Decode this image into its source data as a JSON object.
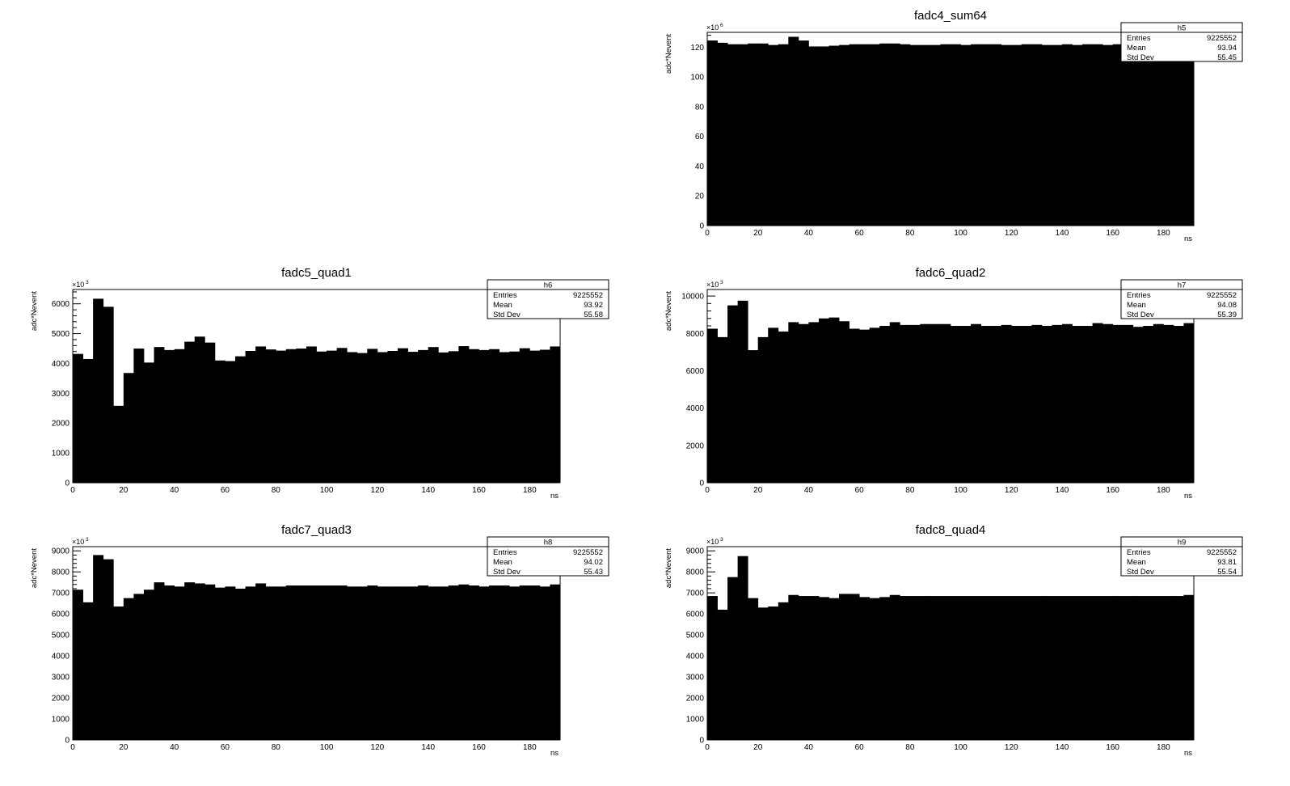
{
  "chart_data": [
    {
      "type": "bar",
      "title": "fadc4_sum64",
      "xlabel": "ns",
      "ylabel": "adc*Nevent",
      "y_multiplier_label": "×10",
      "y_multiplier_exponent": "6",
      "xlim": [
        0,
        192
      ],
      "ylim": [
        0,
        130
      ],
      "xticks": [
        0,
        20,
        40,
        60,
        80,
        100,
        120,
        140,
        160,
        180
      ],
      "yticks": [
        0,
        20,
        40,
        60,
        80,
        100,
        120
      ],
      "bin_width": 4,
      "values": [
        124.5,
        123,
        122,
        122,
        122.5,
        122.5,
        121.5,
        122,
        127,
        124.5,
        120.5,
        120.5,
        121,
        121.5,
        122,
        122,
        122,
        122.5,
        122.5,
        122,
        121.5,
        121.5,
        121.5,
        122,
        122,
        121.5,
        122,
        122,
        122,
        121.5,
        121.5,
        122,
        122,
        121.5,
        121.5,
        122,
        121.5,
        122,
        122,
        121.5,
        122,
        122,
        121.5,
        122,
        121.5,
        122,
        122,
        121.5
      ],
      "stats": {
        "name": "h5",
        "rows": [
          [
            "Entries",
            "9225552"
          ],
          [
            "Mean",
            "93.94"
          ],
          [
            "Std Dev",
            "55.45"
          ]
        ]
      }
    },
    {
      "type": "bar",
      "title": "fadc5_quad1",
      "xlabel": "ns",
      "ylabel": "adc*Nevent",
      "y_multiplier_label": "×10",
      "y_multiplier_exponent": "3",
      "xlim": [
        0,
        192
      ],
      "ylim": [
        0,
        6480
      ],
      "xticks": [
        0,
        20,
        40,
        60,
        80,
        100,
        120,
        140,
        160,
        180
      ],
      "yticks": [
        0,
        1000,
        2000,
        3000,
        4000,
        5000,
        6000
      ],
      "bin_width": 4,
      "values": [
        4320,
        4150,
        6170,
        5900,
        2580,
        3680,
        4500,
        4030,
        4550,
        4450,
        4480,
        4730,
        4900,
        4700,
        4100,
        4080,
        4240,
        4420,
        4570,
        4470,
        4430,
        4480,
        4500,
        4570,
        4400,
        4430,
        4520,
        4380,
        4350,
        4490,
        4380,
        4420,
        4510,
        4390,
        4450,
        4550,
        4370,
        4410,
        4580,
        4480,
        4450,
        4480,
        4380,
        4400,
        4510,
        4430,
        4460,
        4570
      ],
      "stats": {
        "name": "h6",
        "rows": [
          [
            "Entries",
            "9225552"
          ],
          [
            "Mean",
            "93.92"
          ],
          [
            "Std Dev",
            "55.58"
          ]
        ]
      }
    },
    {
      "type": "bar",
      "title": "fadc6_quad2",
      "xlabel": "ns",
      "ylabel": "adc*Nevent",
      "y_multiplier_label": "×10",
      "y_multiplier_exponent": "3",
      "xlim": [
        0,
        192
      ],
      "ylim": [
        0,
        10350
      ],
      "xticks": [
        0,
        20,
        40,
        60,
        80,
        100,
        120,
        140,
        160,
        180
      ],
      "yticks": [
        0,
        2000,
        4000,
        6000,
        8000,
        10000
      ],
      "bin_width": 4,
      "values": [
        8250,
        7800,
        9500,
        9750,
        7100,
        7800,
        8300,
        8100,
        8600,
        8500,
        8600,
        8800,
        8850,
        8650,
        8250,
        8200,
        8300,
        8400,
        8600,
        8450,
        8450,
        8500,
        8500,
        8500,
        8400,
        8400,
        8500,
        8400,
        8400,
        8450,
        8400,
        8400,
        8450,
        8400,
        8450,
        8500,
        8400,
        8400,
        8550,
        8500,
        8450,
        8450,
        8350,
        8400,
        8500,
        8450,
        8400,
        8550
      ],
      "stats": {
        "name": "h7",
        "rows": [
          [
            "Entries",
            "9225552"
          ],
          [
            "Mean",
            "94.08"
          ],
          [
            "Std Dev",
            "55.39"
          ]
        ]
      }
    },
    {
      "type": "bar",
      "title": "fadc7_quad3",
      "xlabel": "ns",
      "ylabel": "adc*Nevent",
      "y_multiplier_label": "×10",
      "y_multiplier_exponent": "3",
      "xlim": [
        0,
        192
      ],
      "ylim": [
        0,
        9200
      ],
      "xticks": [
        0,
        20,
        40,
        60,
        80,
        100,
        120,
        140,
        160,
        180
      ],
      "yticks": [
        0,
        1000,
        2000,
        3000,
        4000,
        5000,
        6000,
        7000,
        8000,
        9000
      ],
      "bin_width": 4,
      "values": [
        7150,
        6550,
        8800,
        8600,
        6350,
        6750,
        6950,
        7150,
        7500,
        7350,
        7300,
        7500,
        7450,
        7400,
        7250,
        7300,
        7200,
        7300,
        7450,
        7300,
        7300,
        7350,
        7350,
        7350,
        7350,
        7350,
        7350,
        7300,
        7300,
        7350,
        7300,
        7300,
        7300,
        7300,
        7350,
        7300,
        7300,
        7350,
        7400,
        7350,
        7300,
        7350,
        7350,
        7300,
        7350,
        7350,
        7300,
        7400
      ],
      "stats": {
        "name": "h8",
        "rows": [
          [
            "Entries",
            "9225552"
          ],
          [
            "Mean",
            "94.02"
          ],
          [
            "Std Dev",
            "55.43"
          ]
        ]
      }
    },
    {
      "type": "bar",
      "title": "fadc8_quad4",
      "xlabel": "ns",
      "ylabel": "adc*Nevent",
      "y_multiplier_label": "×10",
      "y_multiplier_exponent": "3",
      "xlim": [
        0,
        192
      ],
      "ylim": [
        0,
        9200
      ],
      "xticks": [
        0,
        20,
        40,
        60,
        80,
        100,
        120,
        140,
        160,
        180
      ],
      "yticks": [
        0,
        1000,
        2000,
        3000,
        4000,
        5000,
        6000,
        7000,
        8000,
        9000
      ],
      "bin_width": 4,
      "values": [
        6850,
        6200,
        7750,
        8750,
        6750,
        6300,
        6350,
        6550,
        6900,
        6850,
        6850,
        6800,
        6750,
        6950,
        6950,
        6800,
        6750,
        6800,
        6900,
        6850,
        6850,
        6850,
        6850,
        6850,
        6850,
        6850,
        6850,
        6850,
        6850,
        6850,
        6850,
        6850,
        6850,
        6850,
        6850,
        6850,
        6850,
        6850,
        6850,
        6850,
        6850,
        6850,
        6850,
        6850,
        6850,
        6850,
        6850,
        6900
      ],
      "stats": {
        "name": "h9",
        "rows": [
          [
            "Entries",
            "9225552"
          ],
          [
            "Mean",
            "93.81"
          ],
          [
            "Std Dev",
            "55.54"
          ]
        ]
      }
    }
  ]
}
